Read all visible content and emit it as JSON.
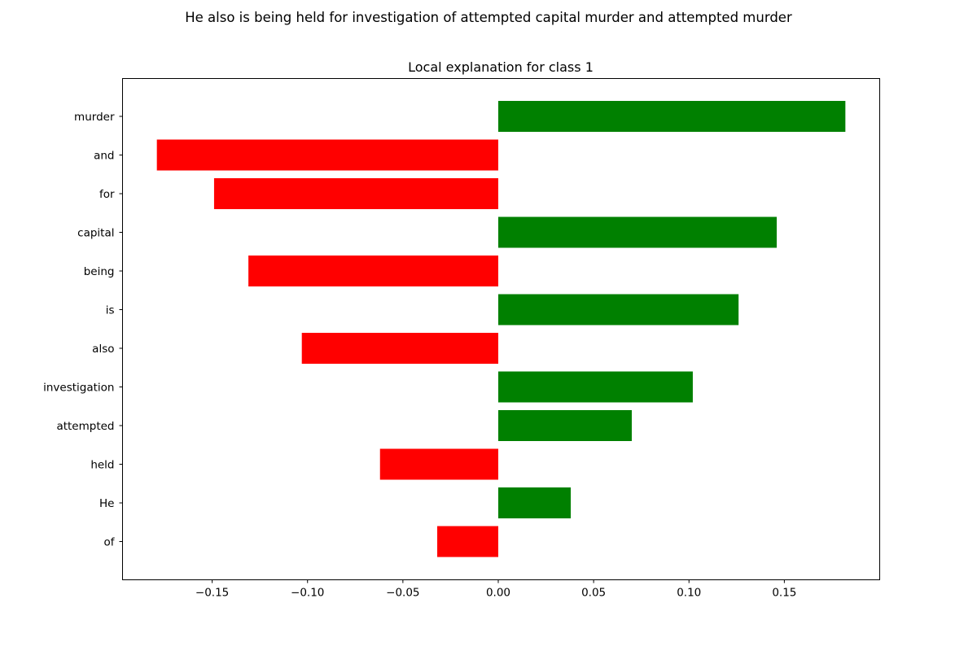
{
  "figure": {
    "suptitle": "He also is being held for investigation of attempted capital murder and attempted murder"
  },
  "chart_data": {
    "type": "bar",
    "orientation": "horizontal",
    "title": "Local explanation for class 1",
    "xlabel": "",
    "ylabel": "",
    "categories": [
      "murder",
      "and",
      "for",
      "capital",
      "being",
      "is",
      "also",
      "investigation",
      "attempted",
      "held",
      "He",
      "of"
    ],
    "values": [
      0.182,
      -0.179,
      -0.149,
      0.146,
      -0.131,
      0.126,
      -0.103,
      0.102,
      0.07,
      -0.062,
      0.038,
      -0.032
    ],
    "xlim": [
      -0.197,
      0.2
    ],
    "xticks": [
      -0.15,
      -0.1,
      -0.05,
      0.0,
      0.05,
      0.1,
      0.15
    ],
    "xtick_labels": [
      "−0.15",
      "−0.10",
      "−0.05",
      "0.00",
      "0.05",
      "0.10",
      "0.15"
    ],
    "grid": false,
    "colors": {
      "positive": "#008000",
      "negative": "#ff0000"
    }
  }
}
